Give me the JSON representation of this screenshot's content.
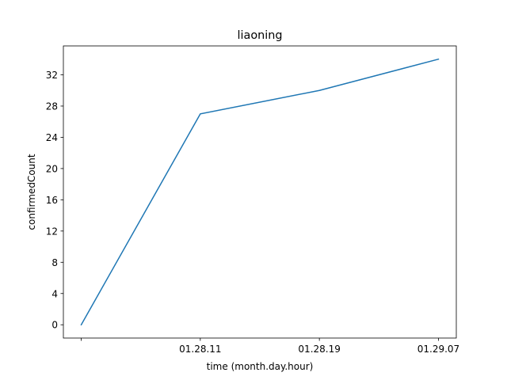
{
  "chart_data": {
    "type": "line",
    "title": "liaoning",
    "xlabel": "time (month.day.hour)",
    "ylabel": "confirmedCount",
    "x_tick_labels": [
      "",
      "01.28.11",
      "01.28.19",
      "01.29.07"
    ],
    "y_ticks": [
      0,
      4,
      8,
      12,
      16,
      20,
      24,
      28,
      32
    ],
    "ylim": [
      -1.7,
      35.7
    ],
    "grid": false,
    "legend": "none",
    "series_color": "#1f77b4",
    "series": [
      {
        "values": [
          0,
          27,
          30,
          34
        ]
      }
    ]
  }
}
